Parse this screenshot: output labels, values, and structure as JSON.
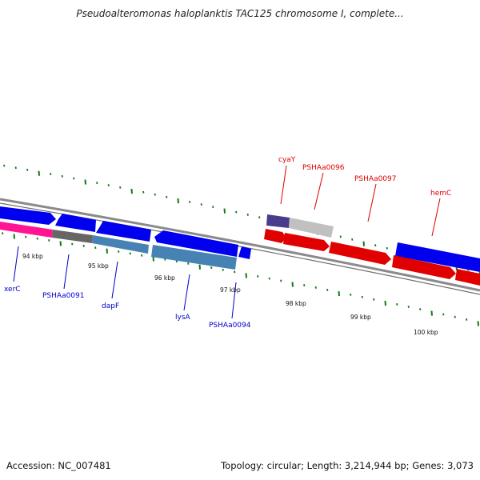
{
  "title": "Pseudoalteromonas haloplanktis TAC125 chromosome I, complete...",
  "footer": {
    "accession": "Accession: NC_007481",
    "summary": "Topology: circular; Length: 3,214,944 bp; Genes: 3,073"
  },
  "colors": {
    "forward_strand": "#e00000",
    "reverse_strand": "#0000ee",
    "forward_label": "#dd0000",
    "reverse_label": "#0000cc",
    "backbone": "#808080",
    "ticks": "#117711",
    "steelblue_gene": "#4682b4",
    "pink_gene": "#ff1493",
    "dark_gray_gene": "#666666",
    "light_gray_gene": "#c0c0c0",
    "purple_gene": "#483d8b"
  },
  "ticks": [
    {
      "label": "94 kbp"
    },
    {
      "label": "95 kbp"
    },
    {
      "label": "96 kbp"
    },
    {
      "label": "97 kbp"
    },
    {
      "label": "98 kbp"
    },
    {
      "label": "99 kbp"
    },
    {
      "label": "100 kbp"
    }
  ],
  "gene_labels": {
    "reverse": [
      "xerC",
      "PSHAa0091",
      "dapF",
      "lysA",
      "PSHAa0094"
    ],
    "forward": [
      "cyaY",
      "PSHAa0096",
      "PSHAa0097",
      "hemC"
    ]
  }
}
